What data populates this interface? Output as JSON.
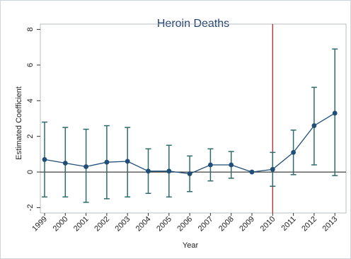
{
  "chart_data": {
    "type": "line",
    "title": "Heroin Deaths",
    "xlabel": "Year",
    "ylabel": "Estimated Coefficient",
    "x": [
      "1999",
      "2000",
      "2001",
      "2002",
      "2003",
      "2004",
      "2005",
      "2006",
      "2007",
      "2008",
      "2009",
      "2010",
      "2011",
      "2012",
      "2013"
    ],
    "y": [
      0.7,
      0.5,
      0.3,
      0.55,
      0.6,
      0.05,
      0.05,
      -0.1,
      0.4,
      0.4,
      0.0,
      0.15,
      1.1,
      2.6,
      3.3
    ],
    "ci_low": [
      -1.4,
      -1.4,
      -1.7,
      -1.5,
      -1.4,
      -1.2,
      -1.4,
      -1.1,
      -0.5,
      -0.35,
      0.0,
      -0.8,
      -0.15,
      0.4,
      -0.2
    ],
    "ci_high": [
      2.8,
      2.5,
      2.4,
      2.6,
      2.5,
      1.3,
      1.5,
      0.9,
      1.3,
      1.15,
      0.0,
      1.1,
      2.35,
      4.75,
      6.9
    ],
    "yticks": [
      -2,
      0,
      2,
      4,
      6,
      8
    ],
    "ylim": [
      -2.3,
      8.3
    ],
    "reference_line_y": 0,
    "vertical_line_x": "2010",
    "grid": false,
    "colors": {
      "series": "#2f6b6b",
      "marker": "#1f4e79",
      "vline": "#b5282e",
      "title": "#1e3f73"
    }
  }
}
